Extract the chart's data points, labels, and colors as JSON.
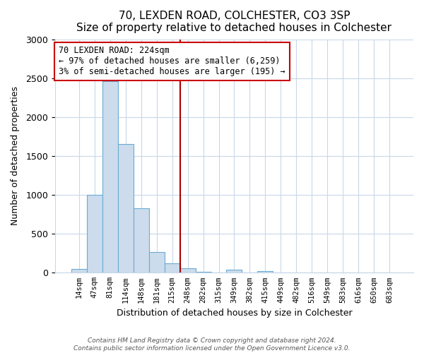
{
  "title": "70, LEXDEN ROAD, COLCHESTER, CO3 3SP",
  "subtitle": "Size of property relative to detached houses in Colchester",
  "xlabel": "Distribution of detached houses by size in Colchester",
  "ylabel": "Number of detached properties",
  "bar_labels": [
    "14sqm",
    "47sqm",
    "81sqm",
    "114sqm",
    "148sqm",
    "181sqm",
    "215sqm",
    "248sqm",
    "282sqm",
    "315sqm",
    "349sqm",
    "382sqm",
    "415sqm",
    "449sqm",
    "482sqm",
    "516sqm",
    "549sqm",
    "583sqm",
    "616sqm",
    "650sqm",
    "683sqm"
  ],
  "bar_values": [
    50,
    1000,
    2460,
    1650,
    830,
    270,
    120,
    55,
    10,
    5,
    40,
    5,
    20,
    0,
    0,
    0,
    0,
    0,
    0,
    0,
    0
  ],
  "bar_color": "#ccdcec",
  "bar_edgecolor": "#6aaad4",
  "vline_x": 6.5,
  "vline_color": "#aa0000",
  "annotation_line1": "70 LEXDEN ROAD: 224sqm",
  "annotation_line2": "← 97% of detached houses are smaller (6,259)",
  "annotation_line3": "3% of semi-detached houses are larger (195) →",
  "annotation_box_color": "#cc0000",
  "ylim": [
    0,
    3000
  ],
  "yticks": [
    0,
    500,
    1000,
    1500,
    2000,
    2500,
    3000
  ],
  "footer1": "Contains HM Land Registry data © Crown copyright and database right 2024.",
  "footer2": "Contains public sector information licensed under the Open Government Licence v3.0.",
  "bg_color": "#ffffff",
  "grid_color": "#c8d8e8"
}
